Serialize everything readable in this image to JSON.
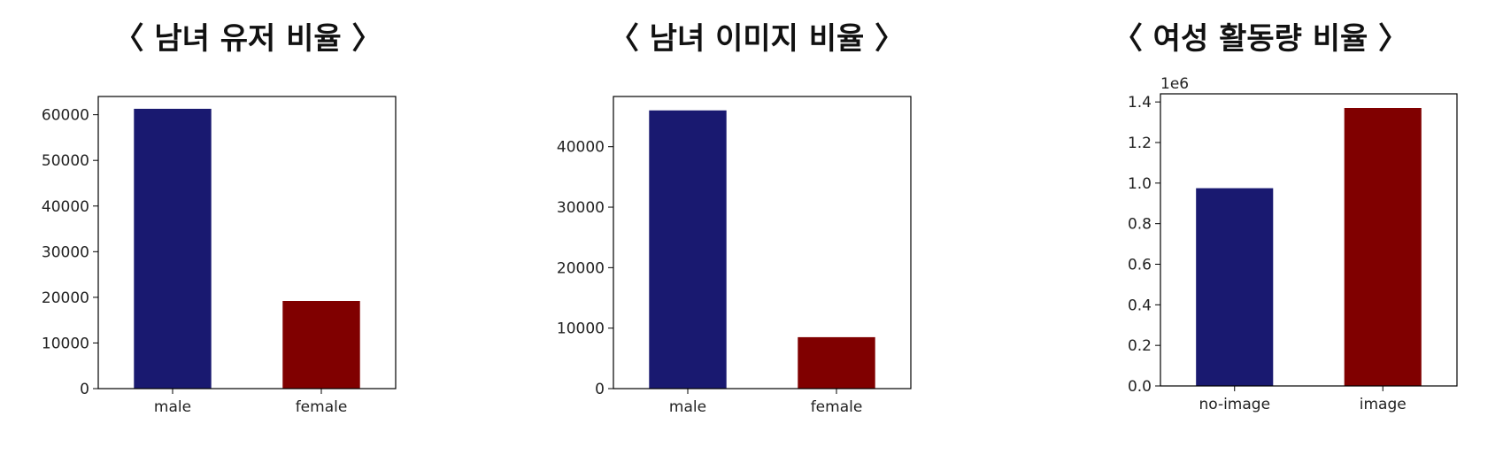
{
  "colors": {
    "male_series": "#191970",
    "female_series": "#800000",
    "axes": "#000000"
  },
  "chart_data": [
    {
      "type": "bar",
      "title": "〈 남녀 유저 비율 〉",
      "categories": [
        "male",
        "female"
      ],
      "values": [
        61300,
        19200
      ],
      "ylim": [
        0,
        64000
      ],
      "yticks": [
        0,
        10000,
        20000,
        30000,
        40000,
        50000,
        60000
      ],
      "ytick_labels": [
        "0",
        "10000",
        "20000",
        "30000",
        "40000",
        "50000",
        "60000"
      ],
      "offset_label": "",
      "bar_colors": [
        "#191970",
        "#800000"
      ],
      "grid": false
    },
    {
      "type": "bar",
      "title": "〈 남녀 이미지 비율 〉",
      "categories": [
        "male",
        "female"
      ],
      "values": [
        46000,
        8500
      ],
      "ylim": [
        0,
        48300
      ],
      "yticks": [
        0,
        10000,
        20000,
        30000,
        40000
      ],
      "ytick_labels": [
        "0",
        "10000",
        "20000",
        "30000",
        "40000"
      ],
      "offset_label": "",
      "bar_colors": [
        "#191970",
        "#800000"
      ],
      "grid": false
    },
    {
      "type": "bar",
      "title": "〈 여성 활동량 비율 〉",
      "categories": [
        "no-image",
        "image"
      ],
      "values": [
        975000,
        1370000
      ],
      "ylim": [
        0,
        1440000
      ],
      "yticks": [
        0,
        200000,
        400000,
        600000,
        800000,
        1000000,
        1200000,
        1400000
      ],
      "ytick_labels": [
        "0.0",
        "0.2",
        "0.4",
        "0.6",
        "0.8",
        "1.0",
        "1.2",
        "1.4"
      ],
      "offset_label": "1e6",
      "bar_colors": [
        "#191970",
        "#800000"
      ],
      "grid": false
    }
  ]
}
